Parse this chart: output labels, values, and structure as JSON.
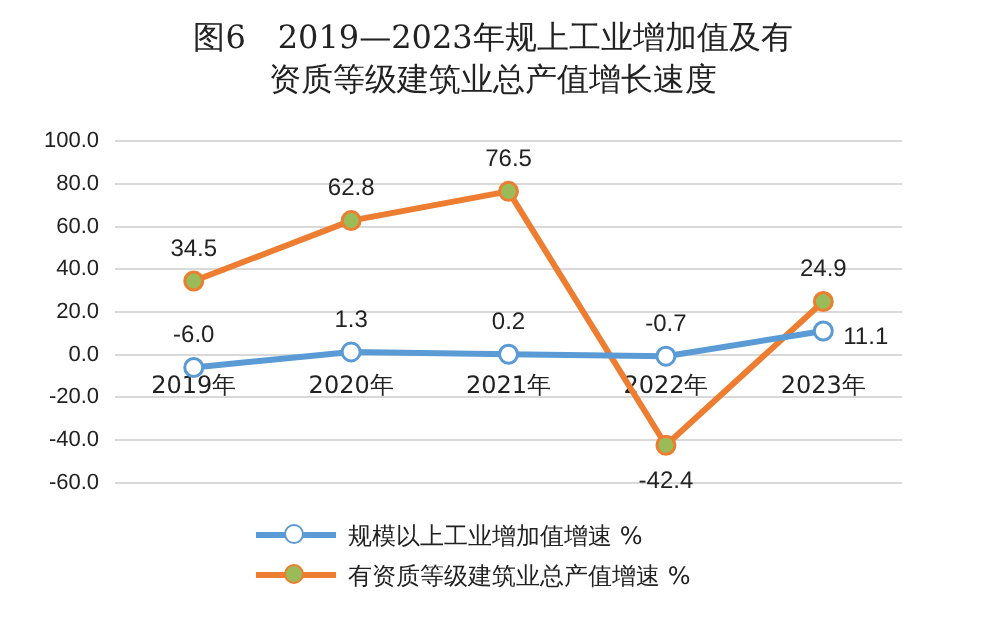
{
  "chart_data": {
    "type": "line",
    "title": "图6　2019—2023年规上工业增加值及有资质等级建筑业总产值增长速度",
    "categories": [
      "2019年",
      "2020年",
      "2021年",
      "2022年",
      "2023年"
    ],
    "series": [
      {
        "name": "规模以上工业增加值增速 %",
        "color": "#5b9bd5",
        "values": [
          -6.0,
          1.3,
          0.2,
          -0.7,
          11.1
        ],
        "value_labels": [
          "-6.0",
          "1.3",
          "0.2",
          "-0.7",
          "11.1"
        ]
      },
      {
        "name": "有资质等级建筑业总产值增速 %",
        "color": "#ed7d31",
        "values": [
          34.5,
          62.8,
          76.5,
          -42.4,
          24.9
        ],
        "value_labels": [
          "34.5",
          "62.8",
          "76.5",
          "-42.4",
          "24.9"
        ]
      }
    ],
    "ylim": [
      -60,
      100
    ],
    "yticks": [
      {
        "value": -60,
        "label": "-60.0"
      },
      {
        "value": -40,
        "label": "-40.0"
      },
      {
        "value": -20,
        "label": "-20.0"
      },
      {
        "value": 0,
        "label": "0.0"
      },
      {
        "value": 20,
        "label": "20.0"
      },
      {
        "value": 40,
        "label": "40.0"
      },
      {
        "value": 60,
        "label": "60.0"
      },
      {
        "value": 80,
        "label": "80.0"
      },
      {
        "value": 100,
        "label": "100.0"
      }
    ],
    "grid": "y",
    "legend": "bottom",
    "marker": "circle"
  }
}
